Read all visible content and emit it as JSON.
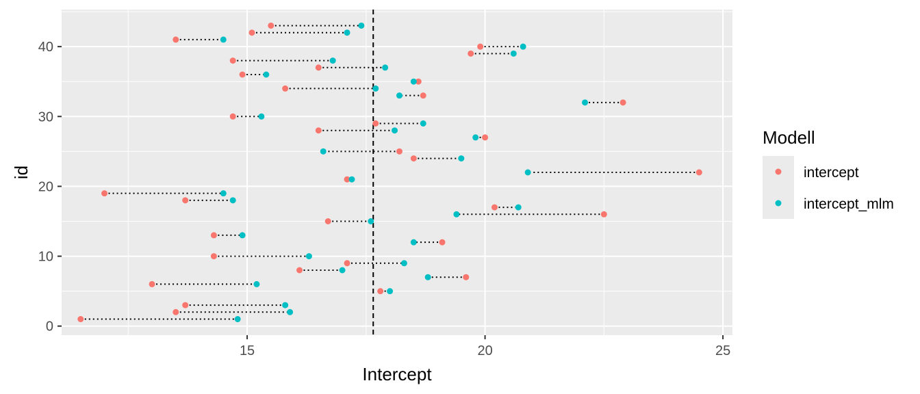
{
  "chart_data": {
    "type": "scatter",
    "title": "",
    "xlabel": "Intercept",
    "ylabel": "id",
    "xlim": [
      11.1,
      25.2
    ],
    "ylim": [
      -1.3,
      45.3
    ],
    "x_ticks": [
      15,
      20,
      25
    ],
    "y_ticks": [
      0,
      10,
      20,
      30,
      40
    ],
    "x_tick_labels": [
      "15",
      "20",
      "25"
    ],
    "y_tick_labels": [
      "0",
      "10",
      "20",
      "30",
      "40"
    ],
    "grid": true,
    "reference_line": {
      "axis": "x",
      "value": 17.65,
      "style": "dashed"
    },
    "connector_style": "dotted",
    "legend": {
      "title": "Modell",
      "position": "right",
      "entries": [
        {
          "label": "intercept",
          "color": "#F8766D"
        },
        {
          "label": "intercept_mlm",
          "color": "#00BFC4"
        }
      ]
    },
    "series": [
      {
        "name": "intercept",
        "color": "#F8766D",
        "points": [
          [
            11.5,
            1
          ],
          [
            13.5,
            2
          ],
          [
            13.7,
            3
          ],
          [
            17.8,
            5
          ],
          [
            13.0,
            6
          ],
          [
            19.6,
            7
          ],
          [
            16.1,
            8
          ],
          [
            17.1,
            9
          ],
          [
            14.3,
            10
          ],
          [
            19.1,
            12
          ],
          [
            14.3,
            13
          ],
          [
            16.7,
            15
          ],
          [
            22.5,
            16
          ],
          [
            20.2,
            17
          ],
          [
            13.7,
            18
          ],
          [
            12.0,
            19
          ],
          [
            17.1,
            21
          ],
          [
            24.5,
            22
          ],
          [
            18.5,
            24
          ],
          [
            18.2,
            25
          ],
          [
            20.0,
            27
          ],
          [
            16.5,
            28
          ],
          [
            17.7,
            29
          ],
          [
            14.7,
            30
          ],
          [
            22.9,
            32
          ],
          [
            18.7,
            33
          ],
          [
            15.8,
            34
          ],
          [
            18.6,
            35
          ],
          [
            14.9,
            36
          ],
          [
            16.5,
            37
          ],
          [
            14.7,
            38
          ],
          [
            19.7,
            39
          ],
          [
            19.9,
            40
          ],
          [
            13.5,
            41
          ],
          [
            15.1,
            42
          ],
          [
            15.5,
            43
          ]
        ]
      },
      {
        "name": "intercept_mlm",
        "color": "#00BFC4",
        "points": [
          [
            14.8,
            1
          ],
          [
            15.9,
            2
          ],
          [
            15.8,
            3
          ],
          [
            18.0,
            5
          ],
          [
            15.2,
            6
          ],
          [
            18.8,
            7
          ],
          [
            17.0,
            8
          ],
          [
            18.3,
            9
          ],
          [
            16.3,
            10
          ],
          [
            18.5,
            12
          ],
          [
            14.9,
            13
          ],
          [
            17.6,
            15
          ],
          [
            19.4,
            16
          ],
          [
            20.7,
            17
          ],
          [
            14.7,
            18
          ],
          [
            14.5,
            19
          ],
          [
            17.2,
            21
          ],
          [
            20.9,
            22
          ],
          [
            19.5,
            24
          ],
          [
            16.6,
            25
          ],
          [
            19.8,
            27
          ],
          [
            18.1,
            28
          ],
          [
            18.7,
            29
          ],
          [
            15.3,
            30
          ],
          [
            22.1,
            32
          ],
          [
            18.2,
            33
          ],
          [
            17.7,
            34
          ],
          [
            18.5,
            35
          ],
          [
            15.4,
            36
          ],
          [
            17.9,
            37
          ],
          [
            16.8,
            38
          ],
          [
            20.6,
            39
          ],
          [
            20.8,
            40
          ],
          [
            14.5,
            41
          ],
          [
            17.1,
            42
          ],
          [
            17.4,
            43
          ]
        ]
      }
    ]
  }
}
